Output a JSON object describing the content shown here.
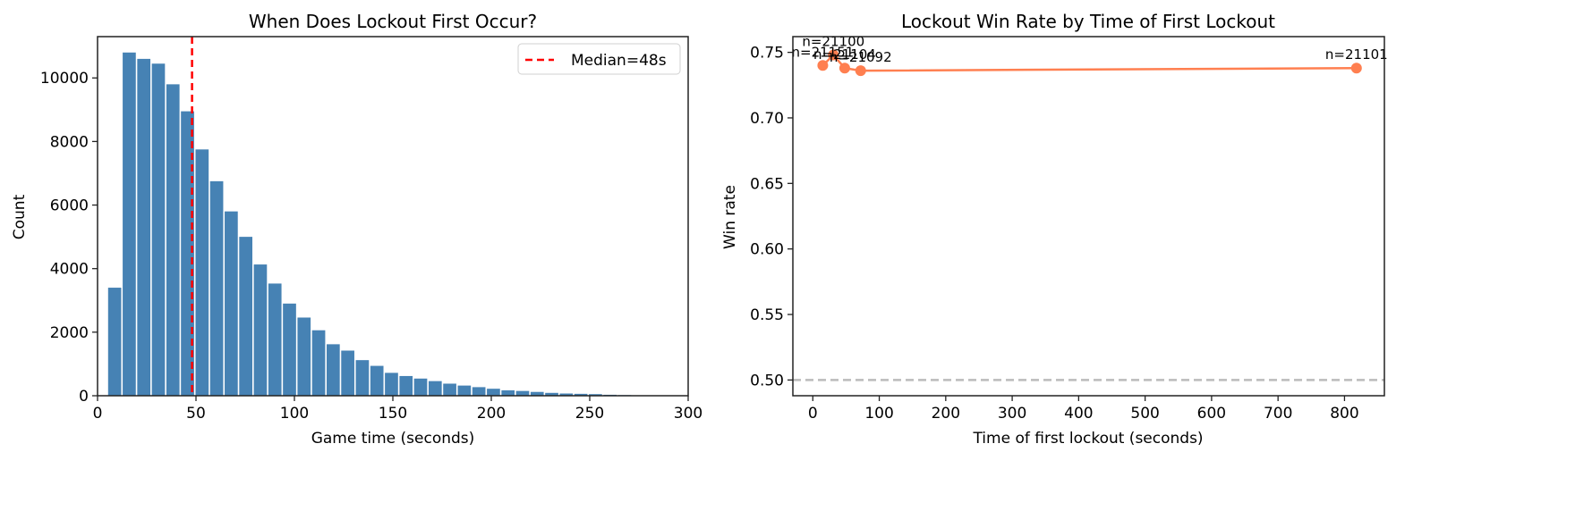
{
  "chart_data": [
    {
      "type": "bar",
      "title": "When Does Lockout First Occur?",
      "xlabel": "Game time (seconds)",
      "ylabel": "Count",
      "xlim": [
        0,
        300
      ],
      "ylim": [
        0,
        11300
      ],
      "xticks": [
        "0",
        "50",
        "100",
        "150",
        "200",
        "250",
        "300"
      ],
      "yticks": [
        "0",
        "2000",
        "4000",
        "6000",
        "8000",
        "10000"
      ],
      "grid": false,
      "bar_color": "#4682b4",
      "bin_start": 5,
      "bin_width": 7.4,
      "values": [
        3400,
        10800,
        10600,
        10450,
        9800,
        8950,
        7750,
        6750,
        5800,
        5000,
        4130,
        3530,
        2900,
        2460,
        2060,
        1620,
        1420,
        1120,
        940,
        720,
        620,
        540,
        460,
        380,
        320,
        270,
        220,
        170,
        150,
        120,
        90,
        70,
        60,
        50,
        30,
        20
      ],
      "reference_line": {
        "x": 48,
        "style": "dashed",
        "color": "#ff0000",
        "label": "Median=48s"
      },
      "legend": {
        "position": "upper right",
        "entries": [
          "Median=48s"
        ]
      }
    },
    {
      "type": "line",
      "title": "Lockout Win Rate by Time of First Lockout",
      "xlabel": "Time of first lockout (seconds)",
      "ylabel": "Win rate",
      "xlim": [
        -30,
        860
      ],
      "ylim": [
        0.488,
        0.762
      ],
      "xticks": [
        "0",
        "100",
        "200",
        "300",
        "400",
        "500",
        "600",
        "700",
        "800"
      ],
      "yticks": [
        "0.50",
        "0.55",
        "0.60",
        "0.65",
        "0.70",
        "0.75"
      ],
      "grid": false,
      "line_color": "#ff7f50",
      "series": [
        {
          "name": "Win rate",
          "x": [
            15,
            31,
            48,
            72,
            818
          ],
          "y": [
            0.74,
            0.748,
            0.738,
            0.736,
            0.738
          ],
          "annotations": [
            "n=21151",
            "n=21100",
            "n=21104",
            "n=21092",
            "n=21101"
          ]
        }
      ],
      "reference_line": {
        "y": 0.5,
        "style": "dashed",
        "color": "#bbbbbb"
      }
    }
  ],
  "left": {
    "title": "When Does Lockout First Occur?",
    "xlabel": "Game time (seconds)",
    "ylabel": "Count",
    "legend_label": "Median=48s"
  },
  "right": {
    "title": "Lockout Win Rate by Time of First Lockout",
    "xlabel": "Time of first lockout (seconds)",
    "ylabel": "Win rate"
  }
}
